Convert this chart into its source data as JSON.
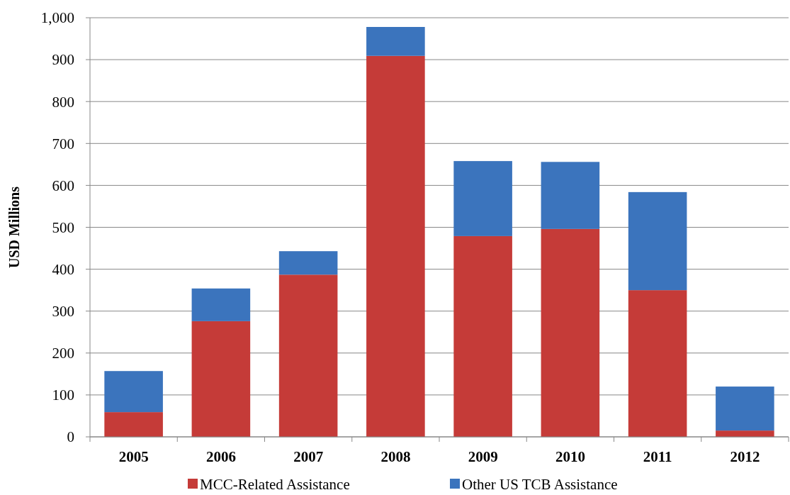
{
  "chart_data": {
    "type": "bar",
    "stacked": true,
    "ylabel": "USD Millions",
    "categories": [
      "2005",
      "2006",
      "2007",
      "2008",
      "2009",
      "2010",
      "2011",
      "2012"
    ],
    "series": [
      {
        "name": "MCC-Related Assistance",
        "color": "#c53b38",
        "values": [
          59,
          276,
          387,
          909,
          479,
          496,
          350,
          15
        ]
      },
      {
        "name": "Other US TCB Assistance",
        "color": "#3b74bd",
        "values": [
          98,
          78,
          56,
          69,
          179,
          160,
          234,
          105
        ]
      }
    ],
    "ylim": [
      0,
      1000
    ],
    "yticks": [
      0,
      100,
      200,
      300,
      400,
      500,
      600,
      700,
      800,
      900,
      {
        "value": 1000,
        "label": "1,000"
      }
    ],
    "grid": "y",
    "legend": "bottom"
  }
}
